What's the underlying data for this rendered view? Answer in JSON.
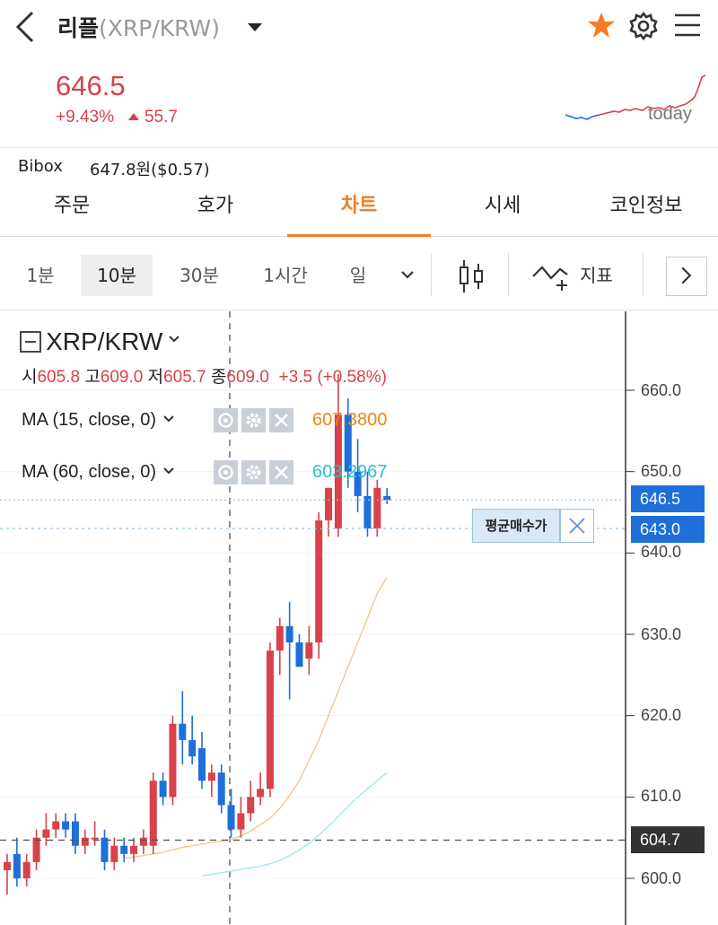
{
  "header": {
    "coin_name": "리플",
    "pair": "(XRP/KRW)"
  },
  "summary": {
    "price": "646.5",
    "change_pct": "+9.43%",
    "change_abs": "55.7",
    "mini_label": "today"
  },
  "exchange": {
    "name": "Bibox",
    "value": "647.8원($0.57)"
  },
  "tabs": [
    "주문",
    "호가",
    "차트",
    "시세",
    "코인정보"
  ],
  "active_tab": "차트",
  "intervals": {
    "items": [
      "1분",
      "10분",
      "30분",
      "1시간",
      "일"
    ],
    "active": "10분",
    "indicator_label": "지표"
  },
  "chart_panel": {
    "symbol": "XRP/KRW",
    "ohlc": {
      "open_label": "시",
      "open": "605.8",
      "high_label": "고",
      "high": "609.0",
      "low_label": "저",
      "low": "605.7",
      "close_label": "종",
      "close": "609.0",
      "change": "+3.5 (+0.58%)"
    },
    "ma15": {
      "label": "MA (15, close, 0)",
      "value": "607.3800",
      "color": "#e8890c"
    },
    "ma60": {
      "label": "MA (60, close, 0)",
      "value": "603.2967",
      "color": "#2bbfcf"
    },
    "current_price_tag": "646.5",
    "avg_price_tag": "643.0",
    "crosshair_price_tag": "604.7",
    "avg_buy_label": "평균매수가",
    "y_ticks": [
      "660.0",
      "650.0",
      "640.0",
      "630.0",
      "620.0",
      "610.0",
      "600.0"
    ]
  },
  "colors": {
    "up": "#d9414b",
    "down": "#1e6fd9",
    "accent": "#f57c20",
    "price_tag": "#1e6fd9",
    "crosshair_tag": "#333333"
  },
  "chart_data": {
    "type": "candlestick",
    "ylim": [
      598,
      666
    ],
    "candles": [
      {
        "o": 601,
        "h": 603,
        "l": 598,
        "c": 602
      },
      {
        "o": 603,
        "h": 605,
        "l": 599,
        "c": 600
      },
      {
        "o": 600,
        "h": 603,
        "l": 599,
        "c": 602
      },
      {
        "o": 602,
        "h": 606,
        "l": 601,
        "c": 605
      },
      {
        "o": 605,
        "h": 608,
        "l": 604,
        "c": 606
      },
      {
        "o": 606,
        "h": 608,
        "l": 605,
        "c": 607
      },
      {
        "o": 607,
        "h": 608,
        "l": 605,
        "c": 606
      },
      {
        "o": 607,
        "h": 608,
        "l": 603,
        "c": 604
      },
      {
        "o": 604,
        "h": 606,
        "l": 603,
        "c": 605
      },
      {
        "o": 605,
        "h": 607,
        "l": 604,
        "c": 605
      },
      {
        "o": 605,
        "h": 606,
        "l": 601,
        "c": 602
      },
      {
        "o": 602,
        "h": 605,
        "l": 601,
        "c": 604
      },
      {
        "o": 604,
        "h": 605,
        "l": 602,
        "c": 603
      },
      {
        "o": 603,
        "h": 605,
        "l": 602,
        "c": 604
      },
      {
        "o": 604,
        "h": 606,
        "l": 603,
        "c": 605
      },
      {
        "o": 604,
        "h": 613,
        "l": 603,
        "c": 612
      },
      {
        "o": 612,
        "h": 613,
        "l": 609,
        "c": 610
      },
      {
        "o": 610,
        "h": 620,
        "l": 609,
        "c": 619
      },
      {
        "o": 619,
        "h": 623,
        "l": 614,
        "c": 617
      },
      {
        "o": 617,
        "h": 620,
        "l": 614,
        "c": 615
      },
      {
        "o": 616,
        "h": 618,
        "l": 611,
        "c": 612
      },
      {
        "o": 612,
        "h": 614,
        "l": 610,
        "c": 613
      },
      {
        "o": 613,
        "h": 614,
        "l": 608,
        "c": 609
      },
      {
        "o": 609,
        "h": 611,
        "l": 605,
        "c": 606
      },
      {
        "o": 606,
        "h": 610,
        "l": 605,
        "c": 608
      },
      {
        "o": 608,
        "h": 612,
        "l": 607,
        "c": 610
      },
      {
        "o": 610,
        "h": 613,
        "l": 609,
        "c": 611
      },
      {
        "o": 611,
        "h": 629,
        "l": 610,
        "c": 628
      },
      {
        "o": 628,
        "h": 632,
        "l": 625,
        "c": 631
      },
      {
        "o": 631,
        "h": 634,
        "l": 622,
        "c": 629
      },
      {
        "o": 629,
        "h": 630,
        "l": 626,
        "c": 626
      },
      {
        "o": 627,
        "h": 631,
        "l": 625,
        "c": 629
      },
      {
        "o": 629,
        "h": 645,
        "l": 627,
        "c": 644
      },
      {
        "o": 644,
        "h": 648,
        "l": 642,
        "c": 648
      },
      {
        "o": 643,
        "h": 662,
        "l": 642,
        "c": 657
      },
      {
        "o": 657,
        "h": 659,
        "l": 648,
        "c": 650
      },
      {
        "o": 650,
        "h": 654,
        "l": 645,
        "c": 647
      },
      {
        "o": 647,
        "h": 650,
        "l": 642,
        "c": 643
      },
      {
        "o": 643,
        "h": 649,
        "l": 642,
        "c": 648
      },
      {
        "o": 647,
        "h": 648,
        "l": 646,
        "c": 646.5
      }
    ],
    "ma15": [
      602.5,
      602.6,
      602.8,
      603.0,
      603.2,
      603.5,
      603.8,
      604.0,
      604.2,
      604.4,
      604.6,
      604.8,
      605.2,
      605.8,
      606.6,
      607.4,
      608.6,
      610.2,
      612.0,
      614.5,
      617.0,
      620.0,
      623.0,
      626.0,
      629.0,
      632.0,
      635.0,
      637.0
    ],
    "ma60": [
      600.3,
      600.5,
      600.7,
      600.9,
      601.1,
      601.3,
      601.5,
      601.8,
      602.2,
      602.8,
      603.5,
      604.3,
      605.3,
      606.4,
      607.6,
      608.8,
      610.0,
      611.0,
      612.0,
      613.0
    ]
  }
}
